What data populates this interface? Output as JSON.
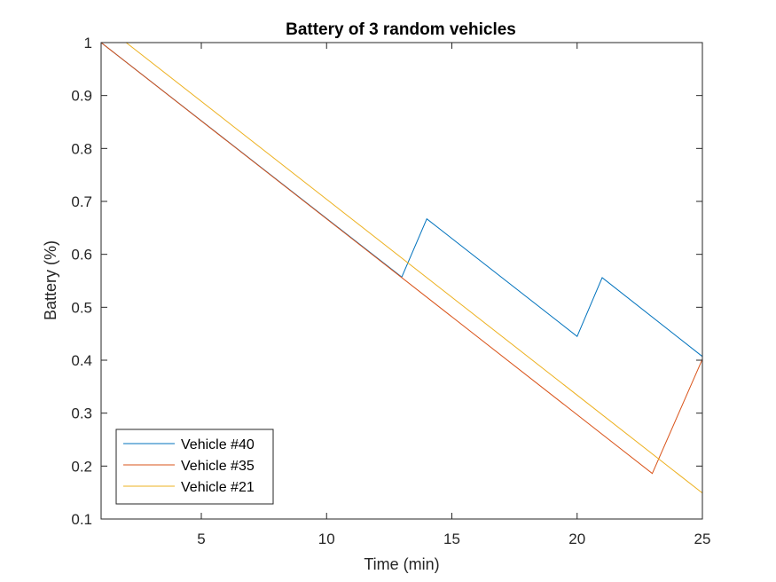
{
  "chart_data": {
    "type": "line",
    "title": "Battery of 3 random vehicles",
    "xlabel": "Time (min)",
    "ylabel": "Battery (%)",
    "xlim": [
      1,
      25
    ],
    "ylim": [
      0.1,
      1
    ],
    "xticks": [
      5,
      10,
      15,
      20,
      25
    ],
    "yticks": [
      0.1,
      0.2,
      0.3,
      0.4,
      0.5,
      0.6,
      0.7,
      0.8,
      0.9,
      1
    ],
    "xtick_labels": [
      "5",
      "10",
      "15",
      "20",
      "25"
    ],
    "ytick_labels": [
      "0.1",
      "0.2",
      "0.3",
      "0.4",
      "0.5",
      "0.6",
      "0.7",
      "0.8",
      "0.9",
      "1"
    ],
    "grid": false,
    "legend_position": "bottom-left",
    "series": [
      {
        "name": "Vehicle #40",
        "color": "#0072BD",
        "x": [
          1,
          13,
          14,
          20,
          21,
          25
        ],
        "y": [
          1.0,
          0.557,
          0.667,
          0.445,
          0.556,
          0.407
        ]
      },
      {
        "name": "Vehicle #35",
        "color": "#D95319",
        "x": [
          1,
          23,
          25
        ],
        "y": [
          1.0,
          0.186,
          0.402
        ]
      },
      {
        "name": "Vehicle #21",
        "color": "#EDB120",
        "x": [
          1,
          2,
          25
        ],
        "y": [
          1.0,
          1.0,
          0.149
        ]
      }
    ]
  }
}
